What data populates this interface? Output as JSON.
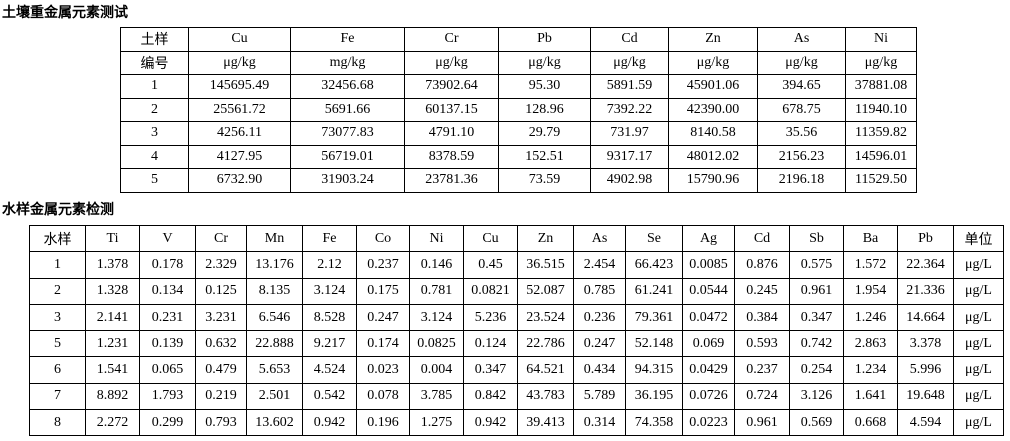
{
  "soil_table": {
    "title": "土壤重金属元素测试",
    "rows": [
      [
        "土样",
        "Cu",
        "Fe",
        "Cr",
        "Pb",
        "Cd",
        "Zn",
        "As",
        "Ni"
      ],
      [
        "编号",
        "μg/kg",
        "mg/kg",
        "μg/kg",
        "μg/kg",
        "μg/kg",
        "μg/kg",
        "μg/kg",
        "μg/kg"
      ],
      [
        "1",
        "145695.49",
        "32456.68",
        "73902.64",
        "95.30",
        "5891.59",
        "45901.06",
        "394.65",
        "37881.08"
      ],
      [
        "2",
        "25561.72",
        "5691.66",
        "60137.15",
        "128.96",
        "7392.22",
        "42390.00",
        "678.75",
        "11940.10"
      ],
      [
        "3",
        "4256.11",
        "73077.83",
        "4791.10",
        "29.79",
        "731.97",
        "8140.58",
        "35.56",
        "11359.82"
      ],
      [
        "4",
        "4127.95",
        "56719.01",
        "8378.59",
        "152.51",
        "9317.17",
        "48012.02",
        "2156.23",
        "14596.01"
      ],
      [
        "5",
        "6732.90",
        "31903.24",
        "23781.36",
        "73.59",
        "4902.98",
        "15790.96",
        "2196.18",
        "11529.50"
      ]
    ]
  },
  "water_table": {
    "title": "水样金属元素检测",
    "rows": [
      [
        "水样",
        "Ti",
        "V",
        "Cr",
        "Mn",
        "Fe",
        "Co",
        "Ni",
        "Cu",
        "Zn",
        "As",
        "Se",
        "Ag",
        "Cd",
        "Sb",
        "Ba",
        "Pb",
        "单位"
      ],
      [
        "1",
        "1.378",
        "0.178",
        "2.329",
        "13.176",
        "2.12",
        "0.237",
        "0.146",
        "0.45",
        "36.515",
        "2.454",
        "66.423",
        "0.0085",
        "0.876",
        "0.575",
        "1.572",
        "22.364",
        "μg/L"
      ],
      [
        "2",
        "1.328",
        "0.134",
        "0.125",
        "8.135",
        "3.124",
        "0.175",
        "0.781",
        "0.0821",
        "52.087",
        "0.785",
        "61.241",
        "0.0544",
        "0.245",
        "0.961",
        "1.954",
        "21.336",
        "μg/L"
      ],
      [
        "3",
        "2.141",
        "0.231",
        "3.231",
        "6.546",
        "8.528",
        "0.247",
        "3.124",
        "5.236",
        "23.524",
        "0.236",
        "79.361",
        "0.0472",
        "0.384",
        "0.347",
        "1.246",
        "14.664",
        "μg/L"
      ],
      [
        "5",
        "1.231",
        "0.139",
        "0.632",
        "22.888",
        "9.217",
        "0.174",
        "0.0825",
        "0.124",
        "22.786",
        "0.247",
        "52.148",
        "0.069",
        "0.593",
        "0.742",
        "2.863",
        "3.378",
        "μg/L"
      ],
      [
        "6",
        "1.541",
        "0.065",
        "0.479",
        "5.653",
        "4.524",
        "0.023",
        "0.004",
        "0.347",
        "64.521",
        "0.434",
        "94.315",
        "0.0429",
        "0.237",
        "0.254",
        "1.234",
        "5.996",
        "μg/L"
      ],
      [
        "7",
        "8.892",
        "1.793",
        "0.219",
        "2.501",
        "0.542",
        "0.078",
        "3.785",
        "0.842",
        "43.783",
        "5.789",
        "36.195",
        "0.0726",
        "0.724",
        "3.126",
        "1.641",
        "19.648",
        "μg/L"
      ],
      [
        "8",
        "2.272",
        "0.299",
        "0.793",
        "13.602",
        "0.942",
        "0.196",
        "1.275",
        "0.942",
        "39.413",
        "0.314",
        "74.358",
        "0.0223",
        "0.961",
        "0.569",
        "0.668",
        "4.594",
        "μg/L"
      ]
    ]
  }
}
